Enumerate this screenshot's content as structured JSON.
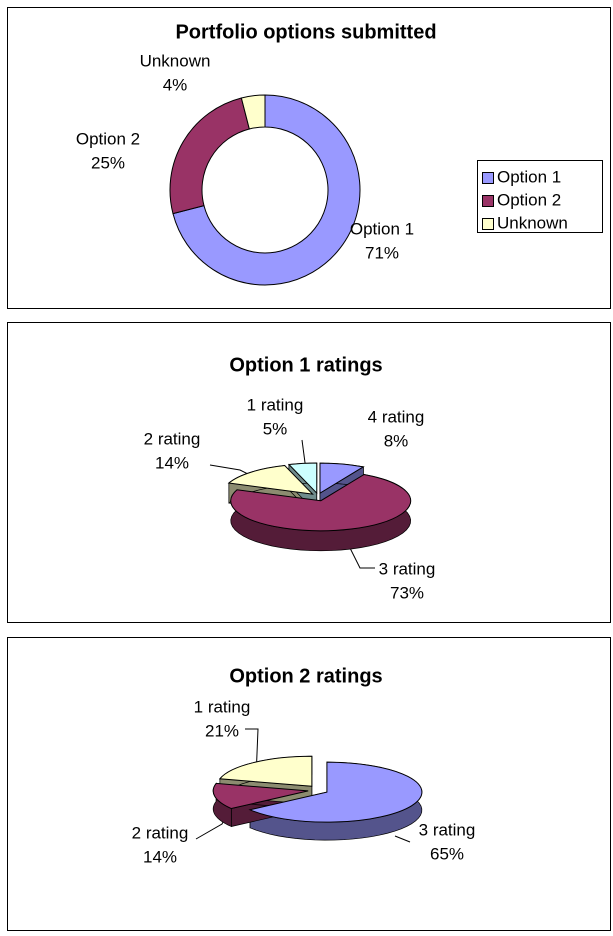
{
  "chart_data": [
    {
      "type": "donut",
      "title": "Portfolio options submitted",
      "categories": [
        "Option 1",
        "Option 2",
        "Unknown"
      ],
      "values": [
        71,
        25,
        4
      ],
      "value_labels": [
        "71%",
        "25%",
        "4%"
      ],
      "colors": [
        "#9999ff",
        "#993366",
        "#ffffcc"
      ],
      "legend": "right"
    },
    {
      "type": "pie",
      "3d": true,
      "title": "Option 1 ratings",
      "categories": [
        "4 rating",
        "3 rating",
        "2 rating",
        "1 rating"
      ],
      "values": [
        8,
        73,
        14,
        5
      ],
      "value_labels": [
        "8%",
        "73%",
        "14%",
        "5%"
      ],
      "colors": [
        "#9999ff",
        "#993366",
        "#ffffcc",
        "#ccffff"
      ]
    },
    {
      "type": "pie",
      "3d": true,
      "title": "Option 2 ratings",
      "categories": [
        "3 rating",
        "2 rating",
        "1 rating"
      ],
      "values": [
        65,
        14,
        21
      ],
      "value_labels": [
        "65%",
        "14%",
        "21%"
      ],
      "colors": [
        "#9999ff",
        "#993366",
        "#ffffcc"
      ]
    }
  ]
}
